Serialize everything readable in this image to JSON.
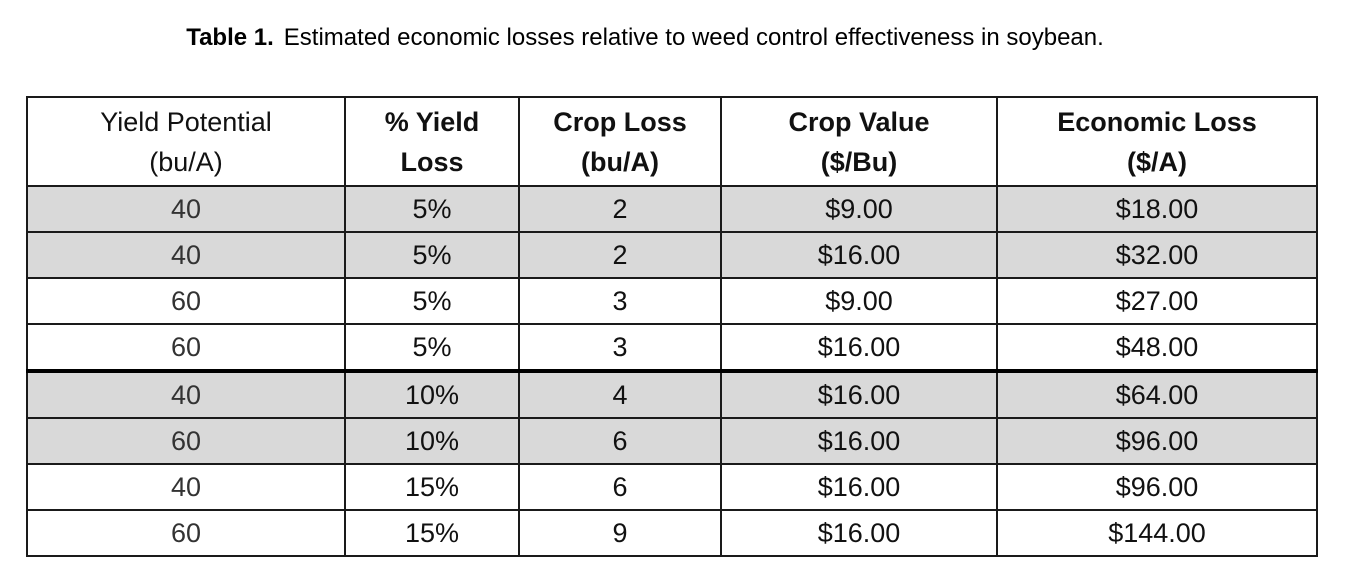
{
  "caption": {
    "label": "Table 1.",
    "text": "Estimated economic losses relative to weed control effectiveness in soybean."
  },
  "table": {
    "headers": [
      {
        "line1": "Yield Potential",
        "line2": "(bu/A)"
      },
      {
        "line1": "% Yield",
        "line2": "Loss"
      },
      {
        "line1": "Crop Loss",
        "line2": "(bu/A)"
      },
      {
        "line1": "Crop Value",
        "line2": "($/Bu)"
      },
      {
        "line1": "Economic Loss",
        "line2": "($/A)"
      }
    ],
    "rows": [
      {
        "yield_potential": "40",
        "pct_loss": "5%",
        "crop_loss": "2",
        "crop_value": "$9.00",
        "economic_loss": "$18.00"
      },
      {
        "yield_potential": "40",
        "pct_loss": "5%",
        "crop_loss": "2",
        "crop_value": "$16.00",
        "economic_loss": "$32.00"
      },
      {
        "yield_potential": "60",
        "pct_loss": "5%",
        "crop_loss": "3",
        "crop_value": "$9.00",
        "economic_loss": "$27.00"
      },
      {
        "yield_potential": "60",
        "pct_loss": "5%",
        "crop_loss": "3",
        "crop_value": "$16.00",
        "economic_loss": "$48.00"
      },
      {
        "yield_potential": "40",
        "pct_loss": "10%",
        "crop_loss": "4",
        "crop_value": "$16.00",
        "economic_loss": "$64.00"
      },
      {
        "yield_potential": "60",
        "pct_loss": "10%",
        "crop_loss": "6",
        "crop_value": "$16.00",
        "economic_loss": "$96.00"
      },
      {
        "yield_potential": "40",
        "pct_loss": "15%",
        "crop_loss": "6",
        "crop_value": "$16.00",
        "economic_loss": "$96.00"
      },
      {
        "yield_potential": "60",
        "pct_loss": "15%",
        "crop_loss": "9",
        "crop_value": "$16.00",
        "economic_loss": "$144.00"
      }
    ]
  },
  "colors": {
    "shaded_row": "#d9d9d9",
    "border": "#1a1a1a",
    "text": "#111111"
  }
}
